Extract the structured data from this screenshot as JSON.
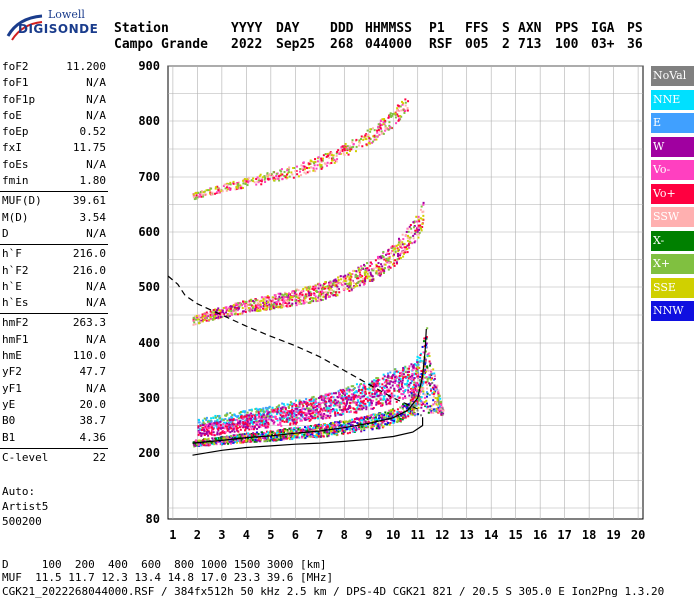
{
  "logo": {
    "line1": "Lowell",
    "line2": "DIGISONDE"
  },
  "header": {
    "labels": [
      "Station",
      "YYYY",
      "DAY",
      "DDD",
      "HHMMSS",
      "P1",
      "FFS",
      "S",
      "AXN",
      "PPS",
      "IGA",
      "PS"
    ],
    "values": [
      "Campo Grande",
      "2022",
      "Sep25",
      "268",
      "044000",
      "RSF",
      "005",
      "2",
      "713",
      "100",
      "03+",
      "36"
    ]
  },
  "params": {
    "group1": [
      [
        "foF2",
        "11.200"
      ],
      [
        "foF1",
        "N/A"
      ],
      [
        "foF1p",
        "N/A"
      ],
      [
        "foE",
        "N/A"
      ],
      [
        "foEp",
        "0.52"
      ],
      [
        "fxI",
        "11.75"
      ],
      [
        "foEs",
        "N/A"
      ],
      [
        "fmin",
        "1.80"
      ]
    ],
    "group2": [
      [
        "MUF(D)",
        "39.61"
      ],
      [
        "M(D)",
        "3.54"
      ],
      [
        "D",
        "N/A"
      ]
    ],
    "group3": [
      [
        "h`F",
        "216.0"
      ],
      [
        "h`F2",
        "216.0"
      ],
      [
        "h`E",
        "N/A"
      ],
      [
        "h`Es",
        "N/A"
      ]
    ],
    "group4": [
      [
        "hmF2",
        "263.3"
      ],
      [
        "hmF1",
        "N/A"
      ],
      [
        "hmE",
        "110.0"
      ],
      [
        "yF2",
        "47.7"
      ],
      [
        "yF1",
        "N/A"
      ],
      [
        "yE",
        "20.0"
      ],
      [
        "B0",
        "38.7"
      ],
      [
        "B1",
        "4.36"
      ]
    ],
    "group5": [
      [
        "C-level",
        "22"
      ]
    ]
  },
  "auto": {
    "line1": "Auto:",
    "line2": "Artist5",
    "line3": "500200"
  },
  "legend": [
    {
      "label": "NoVal",
      "color": "#808080"
    },
    {
      "label": "NNE",
      "color": "#00e0ff"
    },
    {
      "label": "E",
      "color": "#40a0ff"
    },
    {
      "label": "W",
      "color": "#a000a0"
    },
    {
      "label": "Vo-",
      "color": "#ff40c0"
    },
    {
      "label": "Vo+",
      "color": "#ff0040"
    },
    {
      "label": "SSW",
      "color": "#ffb0b0"
    },
    {
      "label": "X-",
      "color": "#008000"
    },
    {
      "label": "X+",
      "color": "#80c040"
    },
    {
      "label": "SSE",
      "color": "#d0d000"
    },
    {
      "label": "NNW",
      "color": "#1010e0"
    }
  ],
  "footer": {
    "d_row": "D     100  200  400  600  800 1000 1500 3000 [km]",
    "muf_row": "MUF  11.5 11.7 12.3 13.4 14.8 17.0 23.3 39.6 [MHz]",
    "file_row": "CGK21_2022268044000.RSF / 384fx512h 50 kHz 2.5 km / DPS-4D CGK21 821 / 20.5 S 305.0 E Ion2Png 1.3.20"
  },
  "chart_data": {
    "type": "scatter",
    "x_ticks": [
      1,
      2,
      3,
      4,
      5,
      6,
      7,
      8,
      9,
      10,
      11,
      12,
      13,
      14,
      15,
      16,
      17,
      18,
      19,
      20
    ],
    "y_ticks": [
      80,
      200,
      300,
      400,
      500,
      600,
      700,
      800,
      900
    ],
    "xlim": [
      0.8,
      20.2
    ],
    "ylim_labels": [
      80,
      900
    ],
    "grid": true,
    "legend_position": "right",
    "profile_dashed": [
      [
        0.8,
        520
      ],
      [
        1.2,
        505
      ],
      [
        1.5,
        485
      ],
      [
        2,
        470
      ],
      [
        3,
        450
      ],
      [
        4,
        430
      ],
      [
        5,
        412
      ],
      [
        6,
        395
      ],
      [
        7,
        375
      ],
      [
        8,
        350
      ],
      [
        9,
        325
      ],
      [
        10,
        300
      ],
      [
        11,
        280
      ]
    ],
    "trace_1st": [
      [
        1.8,
        196
      ],
      [
        3,
        205
      ],
      [
        4,
        210
      ],
      [
        5,
        213
      ],
      [
        6,
        216
      ],
      [
        7,
        218
      ],
      [
        8,
        221
      ],
      [
        9,
        225
      ],
      [
        10,
        230
      ],
      [
        10.8,
        238
      ],
      [
        11.2,
        250
      ],
      [
        11.2,
        265
      ]
    ],
    "trace_o": [
      [
        1.8,
        218
      ],
      [
        3,
        223
      ],
      [
        4,
        228
      ],
      [
        5,
        231
      ],
      [
        6,
        236
      ],
      [
        7,
        240
      ],
      [
        8,
        246
      ],
      [
        9,
        254
      ],
      [
        10,
        264
      ],
      [
        10.6,
        278
      ],
      [
        11,
        300
      ],
      [
        11.2,
        340
      ],
      [
        11.3,
        385
      ],
      [
        11.35,
        425
      ]
    ],
    "echo_2hop": [
      [
        1.8,
        440
      ],
      [
        3,
        455
      ],
      [
        4,
        465
      ],
      [
        5,
        472
      ],
      [
        6,
        480
      ],
      [
        7,
        490
      ],
      [
        8,
        505
      ],
      [
        9,
        525
      ],
      [
        10,
        555
      ],
      [
        10.6,
        585
      ],
      [
        11,
        610
      ],
      [
        11.2,
        630
      ]
    ],
    "echo_3hop": [
      [
        1.8,
        665
      ],
      [
        3,
        680
      ],
      [
        4,
        690
      ],
      [
        5,
        700
      ],
      [
        6,
        710
      ],
      [
        7,
        725
      ],
      [
        8,
        745
      ],
      [
        9,
        770
      ],
      [
        10,
        805
      ],
      [
        10.6,
        835
      ]
    ],
    "scatter_band_W": [
      [
        2,
        240
      ],
      [
        3,
        245
      ],
      [
        4,
        255
      ],
      [
        5,
        262
      ],
      [
        6,
        270
      ],
      [
        7,
        280
      ],
      [
        8,
        290
      ],
      [
        9,
        300
      ],
      [
        10,
        315
      ],
      [
        11,
        335
      ]
    ],
    "scatter_band_NNE": [
      [
        2,
        250
      ],
      [
        3,
        258
      ],
      [
        4,
        262
      ],
      [
        5,
        268
      ],
      [
        6,
        275
      ],
      [
        7,
        282
      ],
      [
        8,
        292
      ],
      [
        9,
        305
      ],
      [
        10,
        320
      ],
      [
        11,
        345
      ]
    ]
  }
}
